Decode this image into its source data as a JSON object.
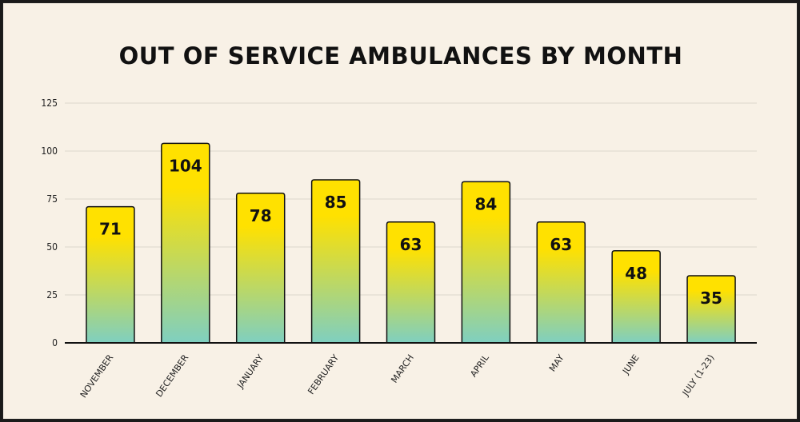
{
  "chart_data": {
    "type": "bar",
    "title": "OUT OF SERVICE AMBULANCES BY MONTH",
    "categories": [
      "NOVEMBER",
      "DECEMBER",
      "JANUARY",
      "FEBRUARY",
      "MARCH",
      "APRIL",
      "MAY",
      "JUNE",
      "JULY (1-23)"
    ],
    "values": [
      71,
      104,
      78,
      85,
      63,
      84,
      63,
      48,
      35
    ],
    "data_labels": [
      "71",
      "104",
      "78",
      "85",
      "63",
      "84",
      "63",
      "48",
      "35"
    ],
    "y_ticks": [
      "0",
      "25",
      "50",
      "75",
      "100",
      "125"
    ],
    "ylim": [
      0,
      125
    ],
    "grid": true,
    "colors": {
      "background": "#f8f1e6",
      "bar_top": "#ffe100",
      "bar_bottom": "#7fcfc0",
      "gridline": "#dcd6cc",
      "axis": "#111111"
    }
  }
}
